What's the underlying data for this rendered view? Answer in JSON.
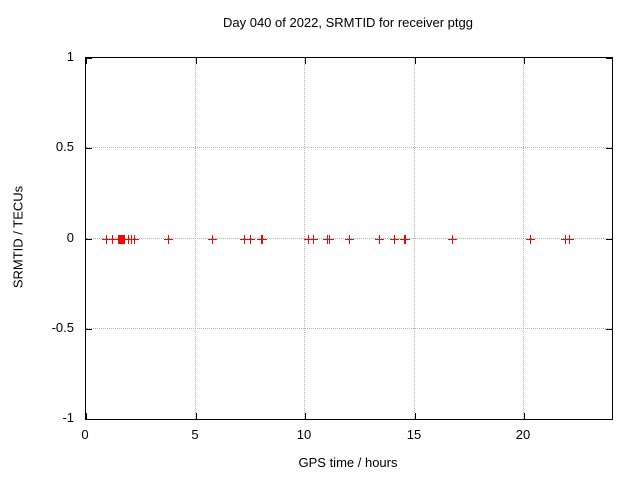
{
  "chart_data": {
    "type": "scatter",
    "title": "Day 040 of 2022, SRMTID for receiver ptgg",
    "xlabel": "GPS time / hours",
    "ylabel": "SRMTID / TECUs",
    "xlim": [
      0,
      24
    ],
    "ylim": [
      -1,
      1
    ],
    "xticks": [
      {
        "value": 0,
        "label": "0"
      },
      {
        "value": 5,
        "label": "5"
      },
      {
        "value": 10,
        "label": "10"
      },
      {
        "value": 15,
        "label": "15"
      },
      {
        "value": 20,
        "label": "20"
      }
    ],
    "yticks": [
      {
        "value": 1,
        "label": "1"
      },
      {
        "value": 0.5,
        "label": "0.5"
      },
      {
        "value": 0,
        "label": "0"
      },
      {
        "value": -0.5,
        "label": "-0.5"
      },
      {
        "value": -1,
        "label": "-1"
      }
    ],
    "grid": true,
    "legend": "none",
    "marker": "plus",
    "colors": {
      "marker": "#ff0000",
      "grid": "#b3b3b3",
      "axis": "#000000",
      "background": "#ffffff"
    },
    "series": [
      {
        "name": "SRMTID",
        "x": [
          0.9,
          1.2,
          1.45,
          1.5,
          1.55,
          1.6,
          1.65,
          1.7,
          1.75,
          1.9,
          2.05,
          2.2,
          3.75,
          5.75,
          7.2,
          7.5,
          8.0,
          8.05,
          10.15,
          10.35,
          11.0,
          11.1,
          12.0,
          13.35,
          14.05,
          14.5,
          14.55,
          16.7,
          20.25,
          21.85,
          22.05
        ],
        "y": [
          0,
          0,
          0,
          0,
          0,
          0,
          0,
          0,
          0,
          0,
          0,
          0,
          0,
          0,
          0,
          0,
          0,
          0,
          0,
          0,
          0,
          0,
          0,
          0,
          0,
          0,
          0,
          0,
          0,
          0,
          0
        ]
      }
    ]
  }
}
